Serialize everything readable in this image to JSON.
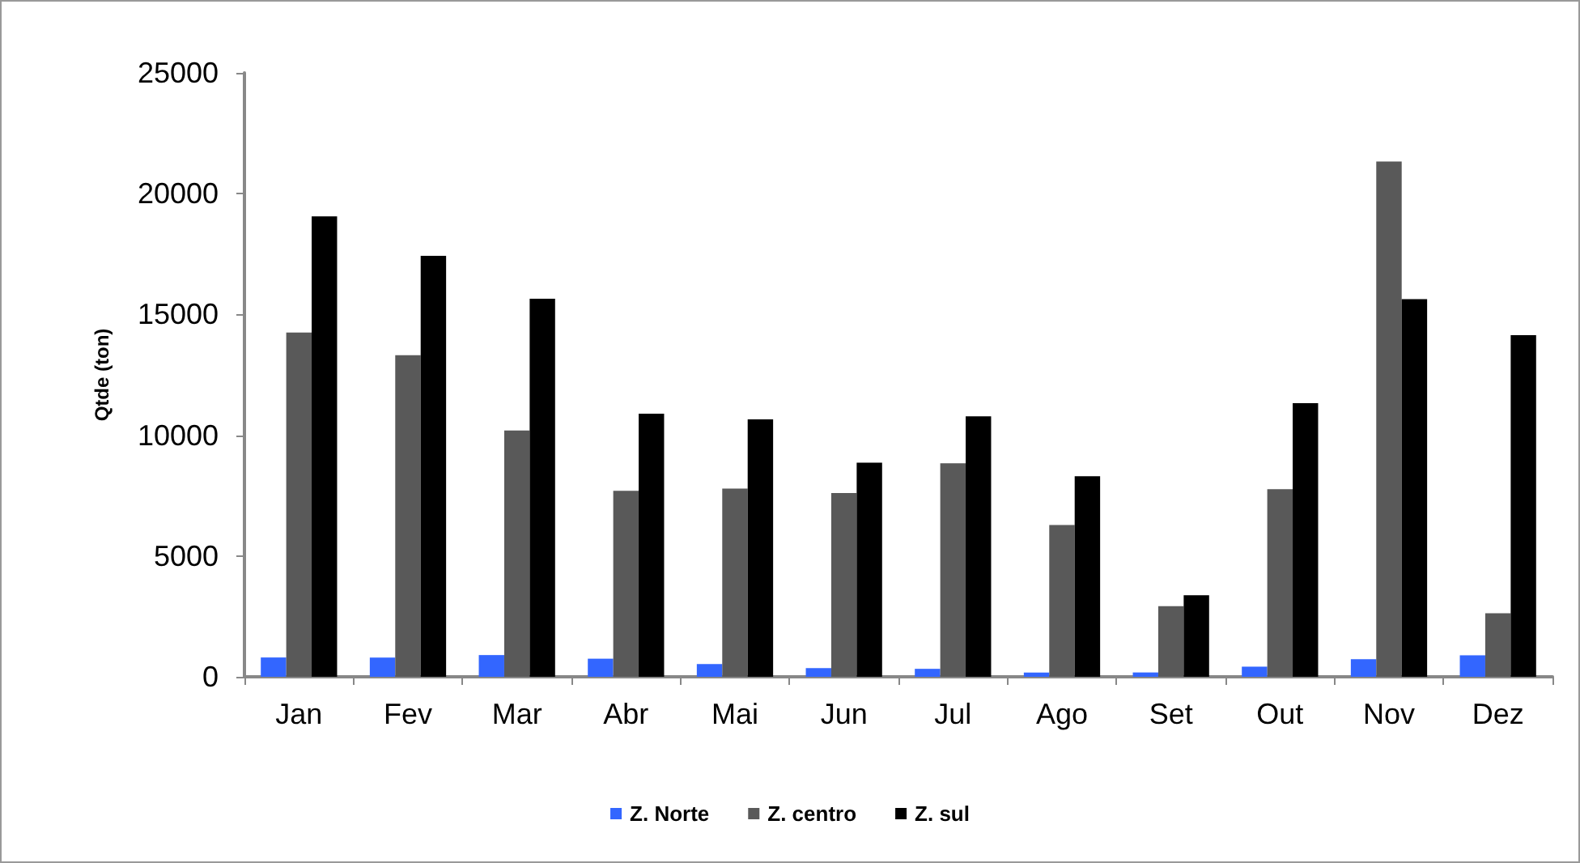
{
  "chart_data": {
    "type": "bar",
    "ylabel": "Qtde (ton)",
    "categories": [
      "Jan",
      "Fev",
      "Mar",
      "Abr",
      "Mai",
      "Jun",
      "Jul",
      "Ago",
      "Set",
      "Out",
      "Nov",
      "Dez"
    ],
    "series": [
      {
        "name": "Z. Norte",
        "color": "#3366ff",
        "values": [
          800,
          800,
          900,
          750,
          530,
          360,
          330,
          180,
          180,
          420,
          730,
          890
        ]
      },
      {
        "name": "Z. centro",
        "color": "#595959",
        "values": [
          14250,
          13310,
          10200,
          7700,
          7790,
          7610,
          8840,
          6280,
          2920,
          7770,
          21330,
          2630
        ]
      },
      {
        "name": "Z. sul",
        "color": "#000000",
        "values": [
          19060,
          17430,
          15650,
          10890,
          10660,
          8860,
          10780,
          8300,
          3380,
          11330,
          15630,
          14140
        ]
      }
    ],
    "ylim": [
      0,
      25000
    ],
    "yticks": [
      0,
      5000,
      10000,
      15000,
      20000,
      25000
    ],
    "grid": false,
    "legend": "bottom"
  }
}
